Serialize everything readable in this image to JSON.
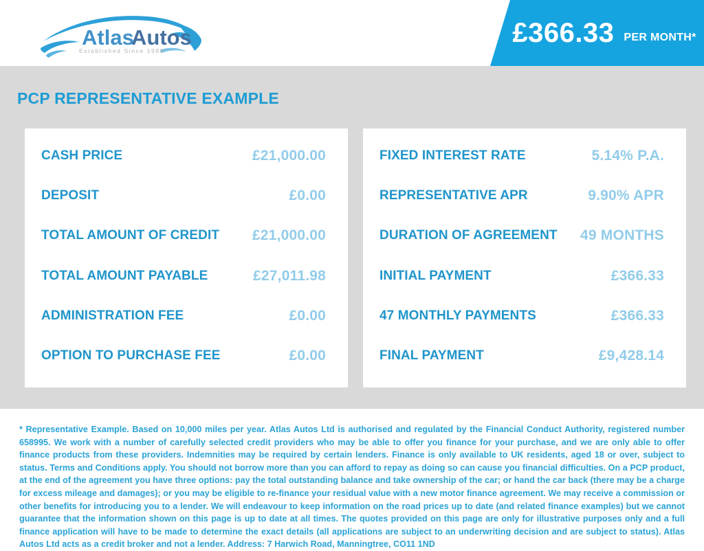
{
  "header": {
    "logo": {
      "brand_first": "Atlas",
      "brand_second": "Autos",
      "tagline": "Established Since 1986"
    },
    "price_banner": {
      "amount": "£366.33",
      "period": "PER MONTH*"
    }
  },
  "page_title": "PCP REPRESENTATIVE EXAMPLE",
  "finance": {
    "left_rows": [
      {
        "label": "CASH PRICE",
        "value": "£21,000.00"
      },
      {
        "label": "DEPOSIT",
        "value": "£0.00"
      },
      {
        "label": "TOTAL AMOUNT OF CREDIT",
        "value": "£21,000.00"
      },
      {
        "label": "TOTAL AMOUNT PAYABLE",
        "value": "£27,011.98"
      },
      {
        "label": "ADMINISTRATION FEE",
        "value": "£0.00"
      },
      {
        "label": "OPTION TO PURCHASE FEE",
        "value": "£0.00"
      }
    ],
    "right_rows": [
      {
        "label": "FIXED INTEREST RATE",
        "value": "5.14% P.A."
      },
      {
        "label": "REPRESENTATIVE APR",
        "value": "9.90% APR"
      },
      {
        "label": "DURATION OF AGREEMENT",
        "value": "49 MONTHS"
      },
      {
        "label": "INITIAL PAYMENT",
        "value": "£366.33"
      },
      {
        "label": "47 MONTHLY PAYMENTS",
        "value": "£366.33"
      },
      {
        "label": "FINAL PAYMENT",
        "value": "£9,428.14"
      }
    ]
  },
  "disclaimer": "* Representative Example. Based on 10,000 miles per year. Atlas Autos Ltd is authorised and regulated by the Financial Conduct Authority, registered number 658995. We work with a number of carefully selected credit providers who may be able to offer you finance for your purchase, and we are only able to offer finance products from these providers. Indemnities may be required by certain lenders. Finance is only available to UK residents, aged 18 or over, subject to status. Terms and Conditions apply. You should not borrow more than you can afford to repay as doing so can cause you financial difficulties. On a PCP product, at the end of the agreement you have three options: pay the total outstanding balance and take ownership of the car; or hand the car back (there may be a charge for excess mileage and damages); or you may be eligible to re-finance your residual value with a new motor finance agreement. We may receive a commission or other benefits for introducing you to a lender. We will endeavour to keep information on the road prices up to date (and related finance examples) but we cannot guarantee that the information shown on this page is up to date at all times. The quotes provided on this page are only for illustrative purposes only and a full finance application will have to be made to determine the exact details (all applications are subject to an underwriting decision and are subject to status). Atlas Autos Ltd acts as a credit broker and not a lender. Address: 7 Harwich Road, Manningtree, CO11 1ND",
  "colors": {
    "banner_blue": "#16a4e0",
    "heading_blue": "#1e9cd4",
    "label_blue": "#2095cb",
    "value_blue": "#92cce9",
    "disclaimer_blue": "#2aa3d6",
    "background_gray": "#d9d9d9",
    "logo_swoosh_blue": "#2da0d8",
    "logo_atlas_blue": "#4191c9",
    "logo_autos_blue": "#45719f",
    "logo_tagline_gray": "#b3b3b3"
  }
}
